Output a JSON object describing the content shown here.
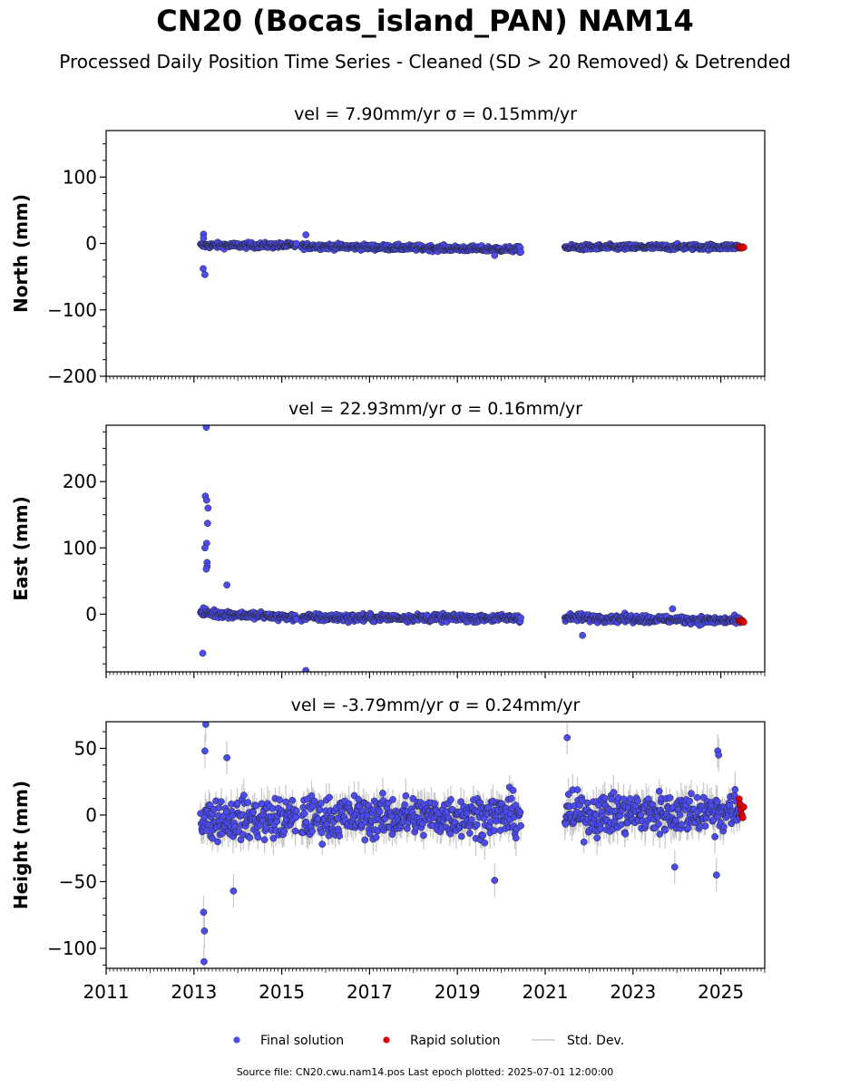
{
  "figure": {
    "title": "CN20 (Bocas_island_PAN) NAM14",
    "subtitle": "Processed Daily Position Time Series - Cleaned (SD > 20 Removed) & Detrended",
    "footer": "Source file: CN20.cwu.nam14.pos  Last epoch plotted: 2025-07-01 12:00:00"
  },
  "chart_data": {
    "type": "scatter",
    "x_label": "",
    "x_ticks": [
      "2011",
      "2013",
      "2015",
      "2017",
      "2019",
      "2021",
      "2023",
      "2025"
    ],
    "xlim": [
      2011.0,
      2026.0
    ],
    "shared_x": true,
    "grid": false,
    "colors": {
      "final": "#4b4bf0",
      "rapid": "#e00000",
      "std": "#c8c8c8",
      "edge": "#222222"
    },
    "data_segments": [
      {
        "start": 2013.15,
        "end": 2015.35
      },
      {
        "start": 2015.45,
        "end": 2020.45
      },
      {
        "start": 2021.45,
        "end": 2025.45
      }
    ],
    "rapid_period": {
      "start": 2025.42,
      "end": 2025.52
    },
    "legend": {
      "position": "bottom-center",
      "entries": [
        {
          "label": "Final solution",
          "color": "#4b4bf0",
          "marker": "circle"
        },
        {
          "label": "Rapid solution",
          "color": "#e00000",
          "marker": "circle"
        },
        {
          "label": "Std. Dev.",
          "color": "#c8c8c8",
          "marker": "line"
        }
      ]
    },
    "panels": [
      {
        "id": "north",
        "title": "vel = 7.90mm/yr   σ = 0.15mm/yr",
        "ylabel": "North (mm)",
        "ylim": [
          -200,
          170
        ],
        "yticks": [
          -200,
          -100,
          0,
          100
        ],
        "ytick_labels": [
          "−200",
          "−100",
          "0",
          "100"
        ],
        "trend": [
          {
            "x": 2013.15,
            "y": -3
          },
          {
            "x": 2015.35,
            "y": -3
          },
          {
            "x": 2015.45,
            "y": -4
          },
          {
            "x": 2020.45,
            "y": -9
          },
          {
            "x": 2021.45,
            "y": -6
          },
          {
            "x": 2025.45,
            "y": -5
          }
        ],
        "noise": 3,
        "std_dev": 2,
        "outliers": [
          {
            "x": 2013.22,
            "y": 14
          },
          {
            "x": 2013.22,
            "y": 8
          },
          {
            "x": 2013.21,
            "y": -38
          },
          {
            "x": 2013.25,
            "y": -47
          },
          {
            "x": 2015.55,
            "y": 13
          },
          {
            "x": 2019.85,
            "y": -18
          }
        ],
        "rapid_values": [
          -5,
          -6,
          -7,
          -5,
          -6
        ]
      },
      {
        "id": "east",
        "title": "vel = 22.93mm/yr   σ = 0.16mm/yr",
        "ylabel": "East (mm)",
        "ylim": [
          -87,
          285
        ],
        "yticks": [
          0,
          100,
          200
        ],
        "ytick_labels": [
          "0",
          "100",
          "200"
        ],
        "trend": [
          {
            "x": 2013.15,
            "y": 2
          },
          {
            "x": 2015.35,
            "y": -5
          },
          {
            "x": 2015.45,
            "y": -5
          },
          {
            "x": 2020.45,
            "y": -6
          },
          {
            "x": 2021.45,
            "y": -5
          },
          {
            "x": 2025.45,
            "y": -10
          }
        ],
        "noise": 4,
        "std_dev": 2,
        "outliers": [
          {
            "x": 2013.28,
            "y": 282
          },
          {
            "x": 2013.26,
            "y": 178
          },
          {
            "x": 2013.29,
            "y": 172
          },
          {
            "x": 2013.32,
            "y": 160
          },
          {
            "x": 2013.31,
            "y": 137
          },
          {
            "x": 2013.29,
            "y": 107
          },
          {
            "x": 2013.25,
            "y": 100
          },
          {
            "x": 2013.3,
            "y": 78
          },
          {
            "x": 2013.3,
            "y": 72
          },
          {
            "x": 2013.28,
            "y": 68
          },
          {
            "x": 2013.75,
            "y": 44
          },
          {
            "x": 2013.2,
            "y": -59
          },
          {
            "x": 2015.55,
            "y": -85
          },
          {
            "x": 2021.85,
            "y": -32
          },
          {
            "x": 2023.9,
            "y": 8
          }
        ],
        "rapid_values": [
          -10,
          -11,
          -9,
          -10,
          -12
        ]
      },
      {
        "id": "height",
        "title": "vel = -3.79mm/yr   σ = 0.24mm/yr",
        "ylabel": "Height (mm)",
        "ylim": [
          -115,
          70
        ],
        "yticks": [
          -100,
          -50,
          0,
          50
        ],
        "ytick_labels": [
          "−100",
          "−50",
          "0",
          "50"
        ],
        "trend": [
          {
            "x": 2013.15,
            "y": -3
          },
          {
            "x": 2015.35,
            "y": -3
          },
          {
            "x": 2015.45,
            "y": -2
          },
          {
            "x": 2020.45,
            "y": 0
          },
          {
            "x": 2021.45,
            "y": 0
          },
          {
            "x": 2025.45,
            "y": 3
          }
        ],
        "noise": 11,
        "std_dev": 9,
        "outliers": [
          {
            "x": 2013.27,
            "y": 68
          },
          {
            "x": 2013.25,
            "y": 48
          },
          {
            "x": 2013.22,
            "y": -73
          },
          {
            "x": 2013.24,
            "y": -87
          },
          {
            "x": 2013.23,
            "y": -110
          },
          {
            "x": 2013.75,
            "y": 43
          },
          {
            "x": 2013.9,
            "y": -57
          },
          {
            "x": 2019.85,
            "y": -49
          },
          {
            "x": 2021.5,
            "y": 58
          },
          {
            "x": 2023.95,
            "y": -39
          },
          {
            "x": 2024.93,
            "y": 48
          },
          {
            "x": 2024.95,
            "y": 45
          },
          {
            "x": 2024.9,
            "y": -45
          }
        ],
        "rapid_values": [
          12,
          8,
          4,
          0,
          -2,
          6
        ]
      }
    ]
  }
}
